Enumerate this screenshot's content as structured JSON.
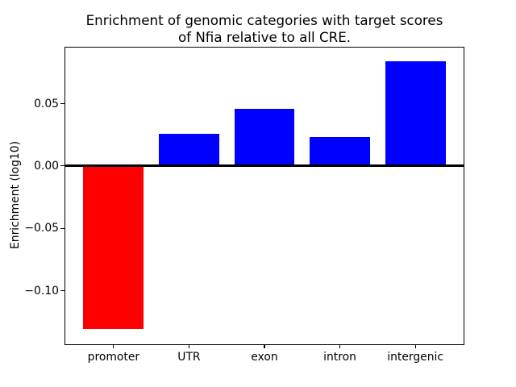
{
  "chart_data": {
    "type": "bar",
    "title": "Enrichment of genomic categories with target scores\nof Nfia relative to all CRE.",
    "ylabel": "Enrichment (log10)",
    "xlabel": "",
    "categories": [
      "promoter",
      "UTR",
      "exon",
      "intron",
      "intergenic"
    ],
    "values": [
      -0.131,
      0.026,
      0.046,
      0.0235,
      0.0843
    ],
    "bar_colors": [
      "#ff0000",
      "#0000ff",
      "#0000ff",
      "#0000ff",
      "#0000ff"
    ],
    "positive_color": "#0000ff",
    "negative_color": "#ff0000",
    "ylim": [
      -0.143,
      0.095
    ],
    "yticks": [
      0.05,
      0.0,
      -0.05,
      -0.1
    ],
    "ytick_labels": [
      "0.05",
      "0.00",
      "−0.05",
      "−0.10"
    ],
    "zero_line": true,
    "grid": false,
    "legend": "none",
    "background": "#ffffff"
  }
}
